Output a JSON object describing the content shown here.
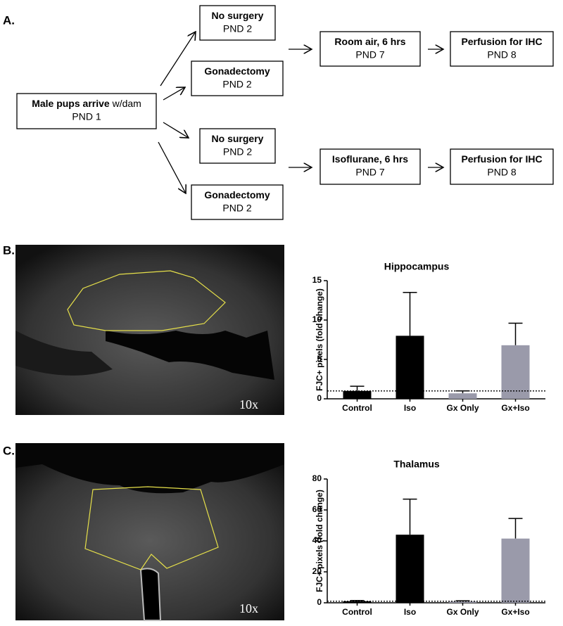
{
  "panels": [
    "A.",
    "B.",
    "C."
  ],
  "diagram": {
    "nodes": [
      {
        "bold": "Male pups arrive",
        "normal": " w/dam",
        "sub": "PND 1"
      },
      {
        "bold": "No surgery",
        "sub": "PND 2"
      },
      {
        "bold": "Gonadectomy",
        "sub": "PND 2"
      },
      {
        "bold": "No surgery",
        "sub": "PND 2"
      },
      {
        "bold": "Gonadectomy",
        "sub": "PND 2"
      },
      {
        "bold": "Room air, 6 hrs",
        "sub": "PND 7"
      },
      {
        "bold": "Perfusion for IHC",
        "sub": "PND 8"
      },
      {
        "bold": "Isoflurane, 6 hrs",
        "sub": "PND 7"
      },
      {
        "bold": "Perfusion for IHC",
        "sub": "PND 8"
      }
    ]
  },
  "images": [
    {
      "magnification": "10x"
    },
    {
      "magnification": "10x"
    }
  ],
  "chart_data": [
    {
      "type": "bar",
      "title": "Hippocampus",
      "y_label": "FJC+ pixels (fold change)",
      "categories": [
        "Control",
        "Iso",
        "Gx Only",
        "Gx+Iso"
      ],
      "values": [
        1.0,
        8.0,
        0.7,
        6.8
      ],
      "errors": [
        0.6,
        5.5,
        0.3,
        2.8
      ],
      "colors": [
        "#000000",
        "#000000",
        "#9a9aaa",
        "#9a9aaa"
      ],
      "reference_line": 1,
      "ylim": [
        0,
        15
      ],
      "yticks": [
        0,
        5,
        10,
        15
      ]
    },
    {
      "type": "bar",
      "title": "Thalamus",
      "y_label": "FJC+ pixels (fold change)",
      "categories": [
        "Control",
        "Iso",
        "Gx Only",
        "Gx+Iso"
      ],
      "values": [
        1.0,
        44,
        0.8,
        41.5
      ],
      "errors": [
        0.5,
        23,
        0.5,
        13
      ],
      "colors": [
        "#000000",
        "#000000",
        "#9a9aaa",
        "#9a9aaa"
      ],
      "reference_line": 1,
      "ylim": [
        0,
        80
      ],
      "yticks": [
        0,
        20,
        40,
        60,
        80
      ]
    }
  ]
}
